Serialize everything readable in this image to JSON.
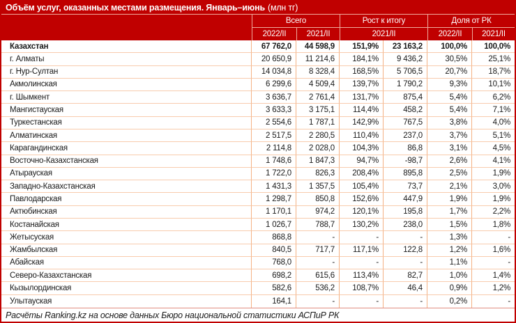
{
  "title": {
    "main": "Объём услуг, оказанных местами размещения. Январь–июнь",
    "unit": "(млн тг)"
  },
  "header": {
    "groups": {
      "total": "Всего",
      "growth": "Рост к итогу",
      "share": "Доля от РК"
    },
    "sub": {
      "total_2022": "2022/II",
      "total_2021": "2021/II",
      "growth_2021": "2021/II",
      "share_2022": "2022/II",
      "share_2021": "2021/II"
    }
  },
  "table": {
    "rows": [
      {
        "name": "Казахстан",
        "bold": true,
        "total_2022": "67 762,0",
        "total_2021": "44 598,9",
        "growth_pct": "151,9%",
        "growth_abs": "23 163,2",
        "share_2022": "100,0%",
        "share_2021": "100,0%"
      },
      {
        "name": "г. Алматы",
        "total_2022": "20 650,9",
        "total_2021": "11 214,6",
        "growth_pct": "184,1%",
        "growth_abs": "9 436,2",
        "share_2022": "30,5%",
        "share_2021": "25,1%"
      },
      {
        "name": "г. Нур-Султан",
        "total_2022": "14 034,8",
        "total_2021": "8 328,4",
        "growth_pct": "168,5%",
        "growth_abs": "5 706,5",
        "share_2022": "20,7%",
        "share_2021": "18,7%"
      },
      {
        "name": "Акмолинская",
        "total_2022": "6 299,6",
        "total_2021": "4 509,4",
        "growth_pct": "139,7%",
        "growth_abs": "1 790,2",
        "share_2022": "9,3%",
        "share_2021": "10,1%"
      },
      {
        "name": "г. Шымкент",
        "total_2022": "3 636,7",
        "total_2021": "2 761,4",
        "growth_pct": "131,7%",
        "growth_abs": "875,4",
        "share_2022": "5,4%",
        "share_2021": "6,2%"
      },
      {
        "name": "Мангистауская",
        "total_2022": "3 633,3",
        "total_2021": "3 175,1",
        "growth_pct": "114,4%",
        "growth_abs": "458,2",
        "share_2022": "5,4%",
        "share_2021": "7,1%"
      },
      {
        "name": "Туркестанская",
        "total_2022": "2 554,6",
        "total_2021": "1 787,1",
        "growth_pct": "142,9%",
        "growth_abs": "767,5",
        "share_2022": "3,8%",
        "share_2021": "4,0%"
      },
      {
        "name": "Алматинская",
        "total_2022": "2 517,5",
        "total_2021": "2 280,5",
        "growth_pct": "110,4%",
        "growth_abs": "237,0",
        "share_2022": "3,7%",
        "share_2021": "5,1%"
      },
      {
        "name": "Карагандинская",
        "total_2022": "2 114,8",
        "total_2021": "2 028,0",
        "growth_pct": "104,3%",
        "growth_abs": "86,8",
        "share_2022": "3,1%",
        "share_2021": "4,5%"
      },
      {
        "name": "Восточно-Казахстанская",
        "total_2022": "1 748,6",
        "total_2021": "1 847,3",
        "growth_pct": "94,7%",
        "growth_abs": "-98,7",
        "share_2022": "2,6%",
        "share_2021": "4,1%"
      },
      {
        "name": "Атырауская",
        "total_2022": "1 722,0",
        "total_2021": "826,3",
        "growth_pct": "208,4%",
        "growth_abs": "895,8",
        "share_2022": "2,5%",
        "share_2021": "1,9%"
      },
      {
        "name": "Западно-Казахстанская",
        "total_2022": "1 431,3",
        "total_2021": "1 357,5",
        "growth_pct": "105,4%",
        "growth_abs": "73,7",
        "share_2022": "2,1%",
        "share_2021": "3,0%"
      },
      {
        "name": "Павлодарская",
        "total_2022": "1 298,7",
        "total_2021": "850,8",
        "growth_pct": "152,6%",
        "growth_abs": "447,9",
        "share_2022": "1,9%",
        "share_2021": "1,9%"
      },
      {
        "name": "Актюбинская",
        "total_2022": "1 170,1",
        "total_2021": "974,2",
        "growth_pct": "120,1%",
        "growth_abs": "195,8",
        "share_2022": "1,7%",
        "share_2021": "2,2%"
      },
      {
        "name": "Костанайская",
        "total_2022": "1 026,7",
        "total_2021": "788,7",
        "growth_pct": "130,2%",
        "growth_abs": "238,0",
        "share_2022": "1,5%",
        "share_2021": "1,8%"
      },
      {
        "name": "Жетысуская",
        "total_2022": "868,8",
        "total_2021": "-",
        "growth_pct": "-",
        "growth_abs": "-",
        "share_2022": "1,3%",
        "share_2021": "-"
      },
      {
        "name": "Жамбылская",
        "total_2022": "840,5",
        "total_2021": "717,7",
        "growth_pct": "117,1%",
        "growth_abs": "122,8",
        "share_2022": "1,2%",
        "share_2021": "1,6%"
      },
      {
        "name": "Абайская",
        "total_2022": "768,0",
        "total_2021": "-",
        "growth_pct": "-",
        "growth_abs": "-",
        "share_2022": "1,1%",
        "share_2021": "-"
      },
      {
        "name": "Северо-Казахстанская",
        "total_2022": "698,2",
        "total_2021": "615,6",
        "growth_pct": "113,4%",
        "growth_abs": "82,7",
        "share_2022": "1,0%",
        "share_2021": "1,4%"
      },
      {
        "name": "Кызылординская",
        "total_2022": "582,6",
        "total_2021": "536,2",
        "growth_pct": "108,7%",
        "growth_abs": "46,4",
        "share_2022": "0,9%",
        "share_2021": "1,2%"
      },
      {
        "name": "Улытауская",
        "total_2022": "164,1",
        "total_2021": "-",
        "growth_pct": "-",
        "growth_abs": "-",
        "share_2022": "0,2%",
        "share_2021": "-"
      }
    ]
  },
  "footer": {
    "source": "Расчёты Ranking.kz на основе данных Бюро национальной статистики АСПиР РК"
  },
  "colors": {
    "header_bg": "#C00000",
    "header_divider": "#F0AC9E",
    "grid_vertical_border": "#F4B183",
    "grid_horizontal_border": "#F8CBAD",
    "footer_divider": "#E08A7E",
    "text": "#1A1A1A",
    "header_text": "#FFFFFF"
  }
}
